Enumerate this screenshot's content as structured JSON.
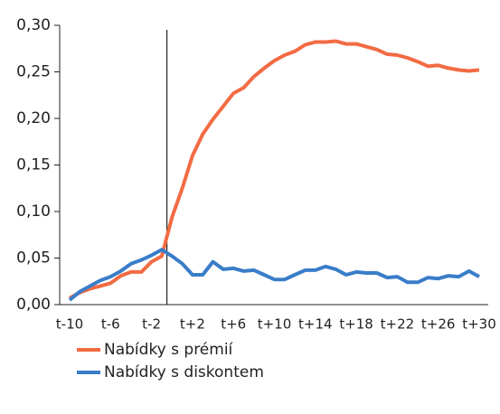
{
  "chart_data": {
    "type": "line",
    "categories": [
      "t-10",
      null,
      null,
      null,
      "t-6",
      null,
      null,
      null,
      "t-2",
      null,
      null,
      null,
      "t+2",
      null,
      null,
      null,
      "t+6",
      null,
      null,
      null,
      "t+10",
      null,
      null,
      null,
      "t+14",
      null,
      null,
      null,
      "t+18",
      null,
      null,
      null,
      "t+22",
      null,
      null,
      null,
      "t+26",
      null,
      null,
      null,
      "t+30"
    ],
    "series": [
      {
        "name": "Nabídky s prémií",
        "color": "#f26b43",
        "values": [
          0.007,
          0.013,
          0.017,
          0.02,
          0.023,
          0.031,
          0.035,
          0.035,
          0.046,
          0.052,
          0.094,
          0.125,
          0.16,
          0.183,
          0.199,
          0.213,
          0.227,
          0.233,
          0.245,
          0.254,
          0.262,
          0.268,
          0.272,
          0.279,
          0.282,
          0.282,
          0.283,
          0.28,
          0.28,
          0.277,
          0.274,
          0.269,
          0.268,
          0.265,
          0.261,
          0.256,
          0.257,
          0.254,
          0.252,
          0.251,
          0.252
        ]
      },
      {
        "name": "Nabídky s diskontem",
        "color": "#3a7dc9",
        "values": [
          0.005,
          0.014,
          0.02,
          0.026,
          0.03,
          0.036,
          0.044,
          0.048,
          0.053,
          0.059,
          0.052,
          0.044,
          0.032,
          0.032,
          0.046,
          0.038,
          0.039,
          0.036,
          0.037,
          0.032,
          0.027,
          0.027,
          0.032,
          0.037,
          0.037,
          0.041,
          0.038,
          0.032,
          0.035,
          0.034,
          0.034,
          0.029,
          0.03,
          0.024,
          0.024,
          0.029,
          0.028,
          0.031,
          0.03,
          0.036,
          0.03
        ]
      }
    ],
    "ylim": [
      0,
      0.3
    ],
    "yticks": [
      {
        "value": 0,
        "label": "0,00"
      },
      {
        "value": 0.05,
        "label": "0,05"
      },
      {
        "value": 0.1,
        "label": "0,10"
      },
      {
        "value": 0.15,
        "label": "0,15"
      },
      {
        "value": 0.2,
        "label": "0,20"
      },
      {
        "value": 0.25,
        "label": "0,25"
      },
      {
        "value": 0.3,
        "label": "0,30"
      }
    ]
  }
}
